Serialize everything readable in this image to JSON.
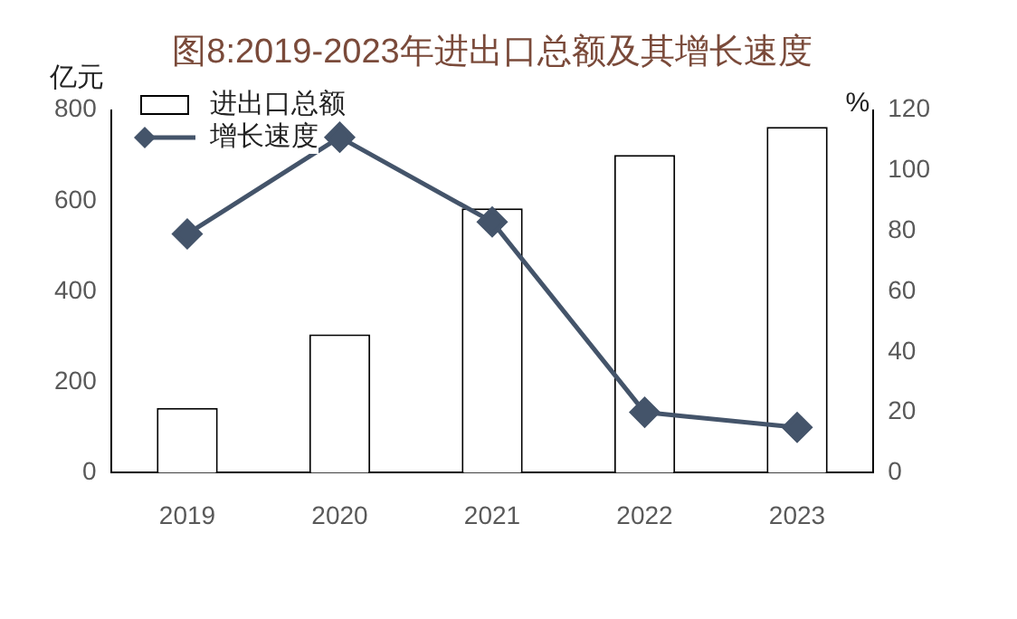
{
  "chart_data": {
    "type": "bar",
    "title": "图8:2019-2023年进出口总额及其增长速度",
    "ylabel": "亿元",
    "y2label": "%",
    "categories": [
      "2019",
      "2020",
      "2021",
      "2022",
      "2023"
    ],
    "series": [
      {
        "name": "进出口总额",
        "color": "#ffffff",
        "values": [
          143,
          305,
          583,
          701,
          763
        ]
      },
      {
        "name": "增长速度",
        "type": "line",
        "axis": "y2",
        "color": "#44546a",
        "marker": "diamond",
        "values": [
          79,
          111,
          83,
          20,
          15
        ]
      }
    ],
    "ylim": [
      0,
      800
    ],
    "yticks": [
      0,
      200,
      400,
      600,
      800
    ],
    "y2lim": [
      0,
      120
    ],
    "y2ticks": [
      0,
      20,
      40,
      60,
      80,
      100,
      120
    ],
    "grid": false,
    "legend": "top left"
  }
}
